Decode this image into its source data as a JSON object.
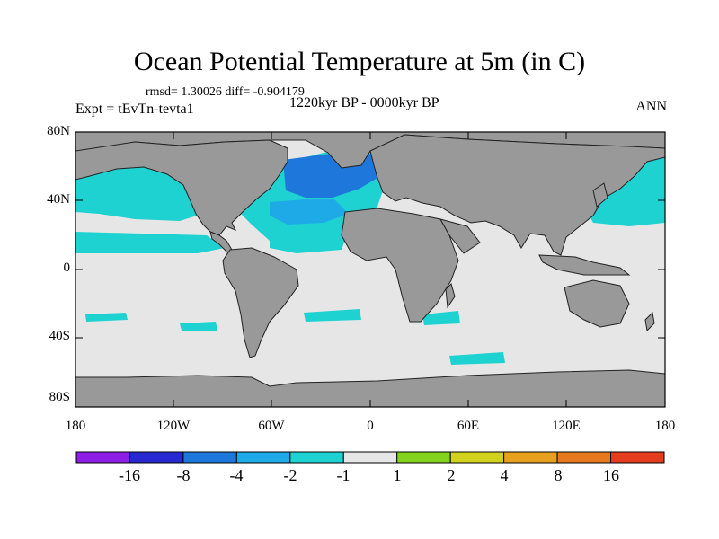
{
  "title": "Ocean Potential Temperature at 5m (in C)",
  "stats": "rmsd= 1.30026 diff= -0.904179",
  "experiment": "Expt = tEvTn-tevta1",
  "period": "1220kyr BP - 0000kyr BP",
  "season": "ANN",
  "lat_labels": [
    "80N",
    "40N",
    "0",
    "40S",
    "80S"
  ],
  "lon_labels": [
    "180",
    "120W",
    "60W",
    "0",
    "60E",
    "120E",
    "180"
  ],
  "colorbar": {
    "colors": [
      "#8c1ee6",
      "#2828d2",
      "#1e78dc",
      "#1eaae6",
      "#1ed2d2",
      "#e6e6e6",
      "#82d21e",
      "#d2d21e",
      "#e6a01e",
      "#e6781e",
      "#e63c1e"
    ],
    "labels": [
      "-16",
      "-8",
      "-4",
      "-2",
      "-1",
      "1",
      "2",
      "4",
      "8",
      "16"
    ]
  },
  "colors": {
    "ocean_background": "#e6e6e6",
    "land": "#999999",
    "cool_light": "#1ed2d2",
    "cool_mid": "#1eaae6",
    "cool_strong": "#1e78dc"
  }
}
